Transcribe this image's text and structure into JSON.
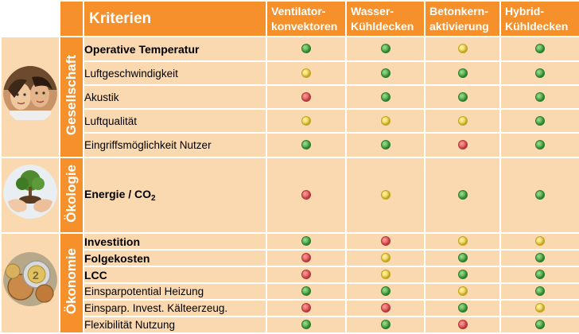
{
  "header": {
    "criteria": "Kriterien",
    "columns": [
      [
        "Ventilator-",
        "konvektoren"
      ],
      [
        "Wasser-",
        "Kühldecken"
      ],
      [
        "Betonkern-",
        "aktivierung"
      ],
      [
        "Hybrid-",
        "Kühldecken"
      ]
    ]
  },
  "groups": {
    "gesellschaft": {
      "label": "Gesellschaft",
      "image": "people-faces-photo",
      "rows": [
        {
          "label": "Operative Temperatur",
          "bold": true,
          "ratings": [
            "green",
            "green",
            "yellow",
            "green"
          ]
        },
        {
          "label": "Luftgeschwindigkeit",
          "bold": false,
          "ratings": [
            "yellow",
            "green",
            "green",
            "green"
          ]
        },
        {
          "label": "Akustik",
          "bold": false,
          "ratings": [
            "red",
            "green",
            "green",
            "green"
          ]
        },
        {
          "label": "Luftqualität",
          "bold": false,
          "ratings": [
            "yellow",
            "yellow",
            "yellow",
            "green"
          ]
        },
        {
          "label": "Eingriffsmöglichkeit Nutzer",
          "bold": false,
          "ratings": [
            "green",
            "green",
            "red",
            "green"
          ]
        }
      ]
    },
    "oekologie": {
      "label": "Ökologie",
      "image": "tree-in-hands-photo",
      "rows": [
        {
          "label": "Energie / CO",
          "subscript": "2",
          "bold": true,
          "ratings": [
            "red",
            "yellow",
            "green",
            "green"
          ]
        }
      ]
    },
    "oekonomie": {
      "label": "Ökonomie",
      "image": "coins-photo",
      "rows": [
        {
          "label": "Investition",
          "bold": true,
          "ratings": [
            "green",
            "red",
            "yellow",
            "yellow"
          ]
        },
        {
          "label": "Folgekosten",
          "bold": true,
          "ratings": [
            "red",
            "yellow",
            "green",
            "green"
          ]
        },
        {
          "label": "LCC",
          "bold": true,
          "ratings": [
            "red",
            "yellow",
            "green",
            "green"
          ]
        },
        {
          "label": "Einsparpotential Heizung",
          "bold": false,
          "ratings": [
            "green",
            "green",
            "yellow",
            "green"
          ]
        },
        {
          "label": "Einsparp. Invest. Kälteerzeug.",
          "bold": false,
          "ratings": [
            "red",
            "red",
            "green",
            "yellow"
          ]
        },
        {
          "label": "Flexibilität Nutzung",
          "bold": false,
          "ratings": [
            "green",
            "green",
            "red",
            "green"
          ]
        }
      ]
    }
  },
  "colors": {
    "header_orange": "#f5902b",
    "cell_peach": "#fbd9b0",
    "green": "#3a9a3a",
    "yellow": "#e8c734",
    "red": "#d94848"
  }
}
